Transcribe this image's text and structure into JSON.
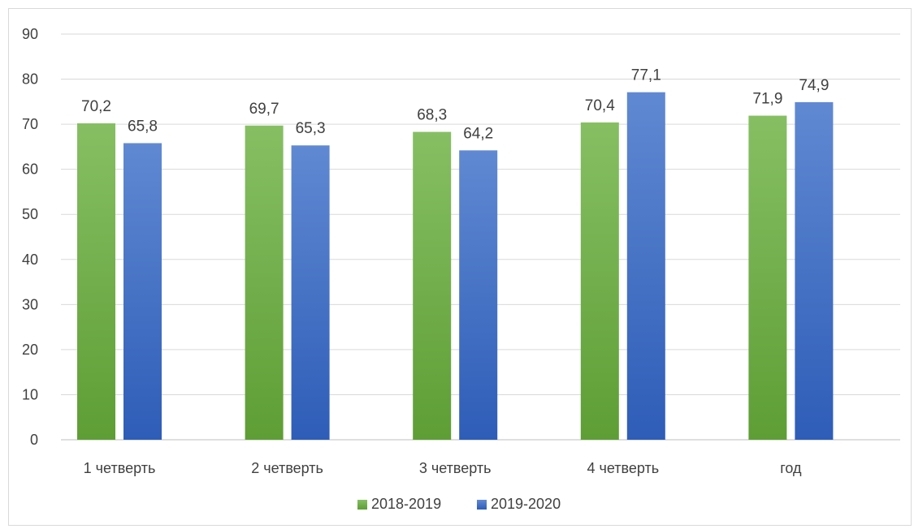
{
  "chart_data": {
    "type": "bar",
    "categories": [
      "1 четверть",
      "2 четверть",
      "3 четверть",
      "4 четверть",
      "год"
    ],
    "series": [
      {
        "name": "2018-2019",
        "values": [
          70.2,
          69.7,
          68.3,
          70.4,
          71.9
        ],
        "labels": [
          "70,2",
          "69,7",
          "68,3",
          "70,4",
          "71,9"
        ],
        "color": "#70AD47"
      },
      {
        "name": "2019-2020",
        "values": [
          65.8,
          65.3,
          64.2,
          77.1,
          74.9
        ],
        "labels": [
          "65,8",
          "65,3",
          "64,2",
          "77,1",
          "74,9"
        ],
        "color": "#4472C4"
      }
    ],
    "ylim": [
      0,
      90
    ],
    "yticks": [
      0,
      10,
      20,
      30,
      40,
      50,
      60,
      70,
      80,
      90
    ],
    "grid": true,
    "legend_position": "bottom"
  }
}
